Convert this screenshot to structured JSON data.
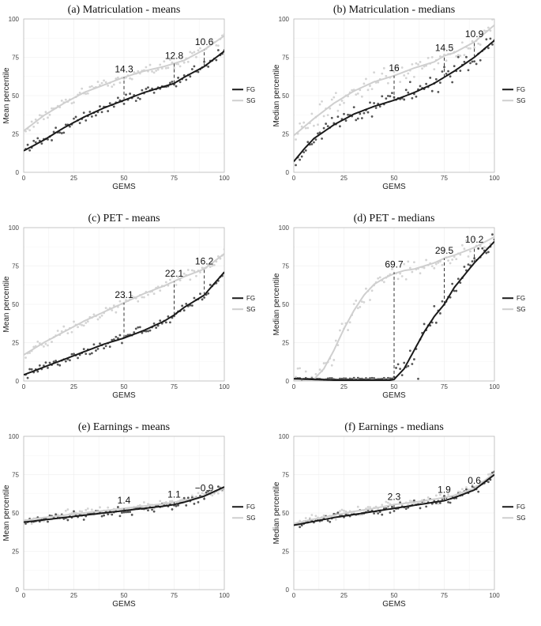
{
  "figure": {
    "legend": [
      {
        "label": "FG",
        "color": "#1a1a1a"
      },
      {
        "label": "SG",
        "color": "#cfcfcf"
      }
    ]
  },
  "chart_data": [
    {
      "id": "a",
      "type": "scatter",
      "title": "(a) Matriculation - means",
      "xlabel": "GEMS",
      "ylabel": "Mean percentile",
      "xlim": [
        0,
        100
      ],
      "ylim": [
        0,
        100
      ],
      "xticks": [
        0,
        25,
        50,
        75,
        100
      ],
      "yticks": [
        0,
        25,
        50,
        75,
        100
      ],
      "series": [
        {
          "name": "FG",
          "color": "#1a1a1a",
          "trend_x": [
            0,
            10,
            20,
            30,
            40,
            50,
            60,
            70,
            75,
            80,
            90,
            100
          ],
          "trend_y": [
            14,
            21,
            29,
            36,
            42,
            47,
            52,
            56,
            58,
            62,
            69,
            79
          ]
        },
        {
          "name": "SG",
          "color": "#cfcfcf",
          "trend_x": [
            0,
            10,
            20,
            30,
            40,
            50,
            60,
            70,
            75,
            80,
            90,
            100
          ],
          "trend_y": [
            27,
            37,
            45,
            52,
            57,
            62,
            66,
            69,
            71,
            73,
            80,
            89
          ]
        }
      ],
      "annotations": [
        {
          "x": 50,
          "text": "14.3",
          "y_low": 47,
          "y_high": 62
        },
        {
          "x": 75,
          "text": "12.8",
          "y_low": 58,
          "y_high": 71
        },
        {
          "x": 90,
          "text": "10.6",
          "y_low": 69,
          "y_high": 80
        }
      ]
    },
    {
      "id": "b",
      "type": "scatter",
      "title": "(b) Matriculation - medians",
      "xlabel": "GEMS",
      "ylabel": "Median percentile",
      "xlim": [
        0,
        100
      ],
      "ylim": [
        0,
        100
      ],
      "xticks": [
        0,
        25,
        50,
        75,
        100
      ],
      "yticks": [
        0,
        25,
        50,
        75,
        100
      ],
      "series": [
        {
          "name": "FG",
          "color": "#1a1a1a",
          "trend_x": [
            0,
            5,
            10,
            20,
            30,
            40,
            50,
            60,
            70,
            75,
            80,
            90,
            100
          ],
          "trend_y": [
            7,
            15,
            22,
            31,
            38,
            43,
            47,
            52,
            58,
            62,
            66,
            75,
            86
          ]
        },
        {
          "name": "SG",
          "color": "#cfcfcf",
          "trend_x": [
            0,
            10,
            20,
            30,
            40,
            50,
            60,
            70,
            75,
            80,
            90,
            100
          ],
          "trend_y": [
            24,
            35,
            45,
            53,
            59,
            63,
            68,
            72,
            76,
            78,
            85,
            96
          ]
        }
      ],
      "annotations": [
        {
          "x": 50,
          "text": "16",
          "y_low": 47,
          "y_high": 63
        },
        {
          "x": 75,
          "text": "14.5",
          "y_low": 62,
          "y_high": 76
        },
        {
          "x": 90,
          "text": "10.9",
          "y_low": 75,
          "y_high": 85
        }
      ]
    },
    {
      "id": "c",
      "type": "scatter",
      "title": "(c) PET - means",
      "xlabel": "GEMS",
      "ylabel": "Mean percentile",
      "xlim": [
        0,
        100
      ],
      "ylim": [
        0,
        100
      ],
      "xticks": [
        0,
        25,
        50,
        75,
        100
      ],
      "yticks": [
        0,
        25,
        50,
        75,
        100
      ],
      "series": [
        {
          "name": "FG",
          "color": "#1a1a1a",
          "trend_x": [
            0,
            10,
            20,
            30,
            40,
            50,
            60,
            70,
            75,
            80,
            90,
            100
          ],
          "trend_y": [
            4,
            9,
            14,
            19,
            24,
            28,
            33,
            39,
            43,
            48,
            56,
            71
          ]
        },
        {
          "name": "SG",
          "color": "#cfcfcf",
          "trend_x": [
            0,
            10,
            20,
            30,
            40,
            50,
            60,
            70,
            75,
            80,
            90,
            100
          ],
          "trend_y": [
            17,
            25,
            32,
            39,
            45,
            51,
            57,
            62,
            65,
            68,
            73,
            83
          ]
        }
      ],
      "annotations": [
        {
          "x": 50,
          "text": "23.1",
          "y_low": 28,
          "y_high": 51
        },
        {
          "x": 75,
          "text": "22.1",
          "y_low": 43,
          "y_high": 65
        },
        {
          "x": 90,
          "text": "16.2",
          "y_low": 56,
          "y_high": 73
        }
      ]
    },
    {
      "id": "d",
      "type": "scatter",
      "title": "(d) PET - medians",
      "xlabel": "GEMS",
      "ylabel": "Median percentile",
      "xlim": [
        0,
        100
      ],
      "ylim": [
        0,
        100
      ],
      "xticks": [
        0,
        25,
        50,
        75,
        100
      ],
      "yticks": [
        0,
        25,
        50,
        75,
        100
      ],
      "series": [
        {
          "name": "FG",
          "color": "#1a1a1a",
          "trend_x": [
            0,
            10,
            20,
            30,
            40,
            48,
            50,
            55,
            60,
            65,
            70,
            75,
            80,
            90,
            100
          ],
          "trend_y": [
            1.5,
            1,
            0.5,
            0.5,
            0.5,
            0.5,
            1,
            8,
            20,
            32,
            42,
            50,
            61,
            77,
            91
          ]
        },
        {
          "name": "SG",
          "color": "#cfcfcf",
          "trend_x": [
            0,
            5,
            10,
            15,
            20,
            25,
            30,
            35,
            40,
            45,
            50,
            55,
            60,
            70,
            75,
            80,
            90,
            100
          ],
          "trend_y": [
            1,
            1,
            1,
            8,
            20,
            34,
            46,
            56,
            63,
            67,
            70,
            72,
            73,
            77,
            80,
            82,
            87,
            94
          ]
        }
      ],
      "annotations": [
        {
          "x": 50,
          "text": "69.7",
          "y_low": 1,
          "y_high": 71
        },
        {
          "x": 75,
          "text": "29.5",
          "y_low": 50,
          "y_high": 80
        },
        {
          "x": 90,
          "text": "10.2",
          "y_low": 77,
          "y_high": 87
        }
      ]
    },
    {
      "id": "e",
      "type": "scatter",
      "title": "(e) Earnings - means",
      "xlabel": "GEMS",
      "ylabel": "Mean percentile",
      "xlim": [
        0,
        100
      ],
      "ylim": [
        0,
        100
      ],
      "xticks": [
        0,
        25,
        50,
        75,
        100
      ],
      "yticks": [
        0,
        25,
        50,
        75,
        100
      ],
      "series": [
        {
          "name": "FG",
          "color": "#1a1a1a",
          "trend_x": [
            0,
            10,
            20,
            30,
            40,
            50,
            60,
            70,
            75,
            80,
            90,
            100
          ],
          "trend_y": [
            44,
            45.5,
            47,
            48.5,
            50,
            51.5,
            53,
            54.5,
            55.5,
            57,
            61,
            67
          ]
        },
        {
          "name": "SG",
          "color": "#cfcfcf",
          "trend_x": [
            0,
            10,
            20,
            30,
            40,
            50,
            60,
            70,
            75,
            80,
            90,
            100
          ],
          "trend_y": [
            45,
            47,
            48.5,
            50,
            51.5,
            53,
            54.5,
            56,
            57,
            58,
            61,
            66
          ]
        }
      ],
      "annotations": [
        {
          "x": 50,
          "text": "1.4",
          "y_low": 51.5,
          "y_high": 53
        },
        {
          "x": 75,
          "text": "1.1",
          "y_low": 55.5,
          "y_high": 57
        },
        {
          "x": 90,
          "text": "−0.9",
          "y_low": 60,
          "y_high": 61
        }
      ]
    },
    {
      "id": "f",
      "type": "scatter",
      "title": "(f) Earnings - medians",
      "xlabel": "GEMS",
      "ylabel": "Median percentile",
      "xlim": [
        0,
        100
      ],
      "ylim": [
        0,
        100
      ],
      "xticks": [
        0,
        25,
        50,
        75,
        100
      ],
      "yticks": [
        0,
        25,
        50,
        75,
        100
      ],
      "series": [
        {
          "name": "FG",
          "color": "#1a1a1a",
          "trend_x": [
            0,
            10,
            20,
            30,
            40,
            50,
            60,
            70,
            75,
            80,
            90,
            100
          ],
          "trend_y": [
            42,
            44.5,
            47,
            49,
            51,
            53,
            55,
            57,
            58,
            60,
            65,
            75
          ]
        },
        {
          "name": "SG",
          "color": "#cfcfcf",
          "trend_x": [
            0,
            10,
            20,
            30,
            40,
            50,
            60,
            70,
            75,
            80,
            90,
            100
          ],
          "trend_y": [
            43,
            46,
            48.5,
            51,
            53,
            55.5,
            57,
            59,
            60,
            61.5,
            66,
            76
          ]
        }
      ],
      "annotations": [
        {
          "x": 50,
          "text": "2.3",
          "y_low": 53,
          "y_high": 55.5
        },
        {
          "x": 75,
          "text": "1.9",
          "y_low": 58,
          "y_high": 60
        },
        {
          "x": 90,
          "text": "0.6",
          "y_low": 65,
          "y_high": 66
        }
      ]
    }
  ]
}
